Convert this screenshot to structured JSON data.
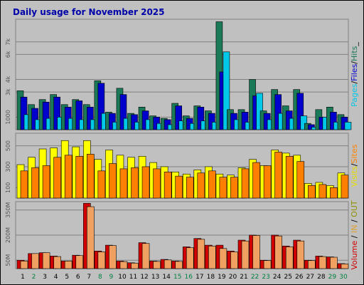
{
  "chart_data": {
    "type": "bar",
    "title": "Daily usage for November 2025",
    "categories": [
      "1",
      "2",
      "3",
      "4",
      "5",
      "6",
      "7",
      "8",
      "9",
      "10",
      "11",
      "12",
      "13",
      "14",
      "15",
      "16",
      "17",
      "18",
      "19",
      "20",
      "21",
      "22",
      "23",
      "24",
      "25",
      "26",
      "27",
      "28",
      "29",
      "30"
    ],
    "weekend_days": [
      "2",
      "8",
      "9",
      "15",
      "16",
      "22",
      "23",
      "29",
      "30"
    ],
    "panels": [
      {
        "id": "hits",
        "ylabel_parts": [
          {
            "text": "Pages",
            "color": "#00c8e8"
          },
          {
            "text": "/",
            "color": "#000000"
          },
          {
            "text": "Files",
            "color": "#0000cc"
          },
          {
            "text": "/",
            "color": "#000000"
          },
          {
            "text": "Hits",
            "color": "#1a7a58"
          },
          {
            "text": "_",
            "color": "#000000"
          }
        ],
        "ylim": [
          0,
          8800
        ],
        "yticks": [
          1000,
          3000,
          4000,
          6000,
          7000
        ],
        "ytick_labels": [
          "1000",
          "3k",
          "4k",
          "6k",
          "7k"
        ],
        "series": [
          {
            "name": "Hits",
            "color": "#1a7a58",
            "values": [
              3100,
              2000,
              2400,
              2800,
              2000,
              2400,
              2000,
              3900,
              1400,
              3300,
              1300,
              1800,
              1100,
              900,
              2100,
              1100,
              1900,
              1500,
              8600,
              1600,
              1600,
              4000,
              1500,
              3200,
              1900,
              3200,
              500,
              1600,
              1800,
              1200
            ]
          },
          {
            "name": "Files",
            "color": "#0000cc",
            "values": [
              2600,
              1700,
              2200,
              2600,
              1800,
              2300,
              1800,
              3700,
              1300,
              2800,
              1200,
              1500,
              1000,
              800,
              1900,
              900,
              1800,
              1300,
              4600,
              1300,
              1400,
              2700,
              1300,
              2800,
              1500,
              2900,
              400,
              1000,
              1400,
              1000
            ]
          },
          {
            "name": "Pages",
            "color": "#00c8e8",
            "values": [
              1200,
              800,
              900,
              1000,
              900,
              800,
              800,
              1300,
              600,
              900,
              600,
              800,
              500,
              400,
              700,
              500,
              700,
              600,
              6200,
              800,
              600,
              2900,
              800,
              1300,
              900,
              1100,
              200,
              1000,
              600,
              600
            ]
          }
        ]
      },
      {
        "id": "visits",
        "ylabel_parts": [
          {
            "text": "Visits",
            "color": "#e8e000"
          },
          {
            "text": "/",
            "color": "#000000"
          },
          {
            "text": "Sites",
            "color": "#ff8000"
          }
        ],
        "ylim": [
          0,
          620
        ],
        "yticks": [
          100,
          300,
          500
        ],
        "ytick_labels": [
          "100",
          "300",
          "500"
        ],
        "series": [
          {
            "name": "Visits",
            "color": "#ffff00",
            "values": [
              320,
              390,
              470,
              480,
              550,
              490,
              550,
              370,
              460,
              410,
              390,
              400,
              340,
              300,
              250,
              230,
              270,
              300,
              230,
              220,
              290,
              370,
              310,
              460,
              430,
              410,
              140,
              150,
              120,
              240
            ]
          },
          {
            "name": "Sites",
            "color": "#ff8000",
            "values": [
              260,
              290,
              310,
              390,
              410,
              400,
              420,
              260,
              330,
              280,
              290,
              300,
              280,
              250,
              210,
              200,
              240,
              260,
              200,
              200,
              280,
              340,
              310,
              440,
              400,
              350,
              120,
              130,
              100,
              220
            ]
          }
        ]
      },
      {
        "id": "volume",
        "ylabel_parts": [
          {
            "text": "Volume",
            "color": "#d00000"
          },
          {
            "text": " / ",
            "color": "#000000"
          },
          {
            "text": "IN",
            "color": "#e0a030"
          },
          {
            "text": " / ",
            "color": "#000000"
          },
          {
            "text": "OUT",
            "color": "#909000"
          }
        ],
        "ylim": [
          0,
          400
        ],
        "yticks": [
          50,
          200,
          350
        ],
        "ytick_labels": [
          "50M",
          "200M",
          "350M"
        ],
        "series": [
          {
            "name": "Volume",
            "color": "#d00000",
            "values": [
              50,
              90,
              95,
              75,
              45,
              80,
              390,
              105,
              140,
              45,
              35,
              155,
              45,
              55,
              45,
              130,
              180,
              140,
              140,
              105,
              170,
              200,
              50,
              200,
              135,
              170,
              50,
              75,
              70,
              30
            ]
          },
          {
            "name": "IN",
            "color": "#f0a060",
            "values": [
              45,
              90,
              95,
              72,
              45,
              78,
              370,
              100,
              138,
              42,
              33,
              150,
              43,
              52,
              43,
              125,
              175,
              135,
              120,
              100,
              165,
              198,
              48,
              195,
              130,
              165,
              48,
              72,
              68,
              28
            ]
          }
        ]
      }
    ]
  }
}
